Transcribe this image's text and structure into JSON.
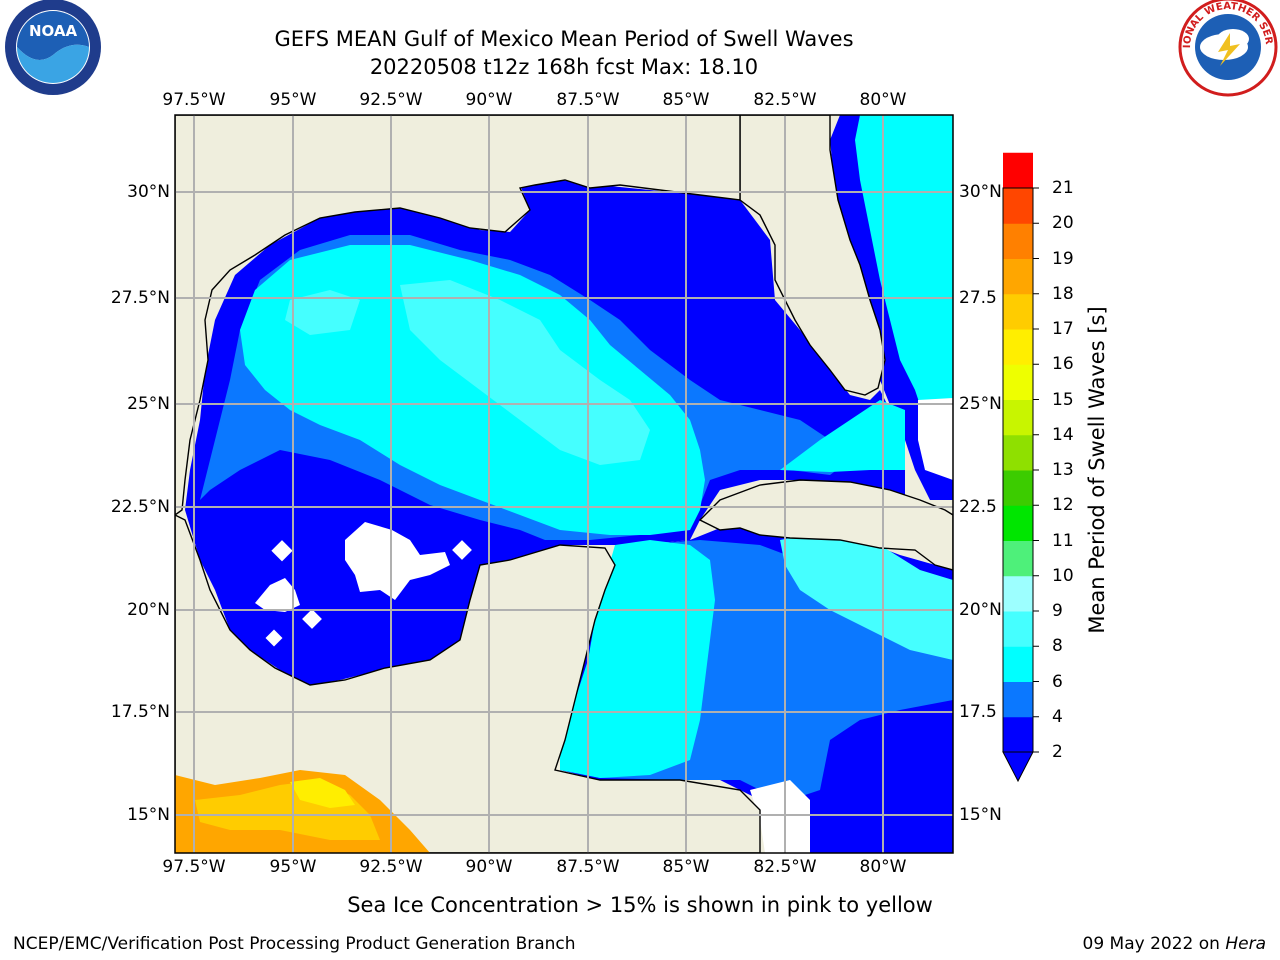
{
  "header": {
    "title_line1": "GEFS MEAN Gulf of Mexico Mean Period of Swell Waves",
    "title_line2": "20220508 t12z 168h fcst   Max: 18.10"
  },
  "logos": {
    "left": {
      "name": "noaa-logo",
      "text": "NOAA"
    },
    "right": {
      "name": "nws-logo",
      "text": "NATIONAL WEATHER SERVICE"
    }
  },
  "axes": {
    "x_ticks": [
      "97.5°W",
      "95°W",
      "92.5°W",
      "90°W",
      "87.5°W",
      "85°W",
      "82.5°W",
      "80°W"
    ],
    "y_ticks_left": [
      "30°N",
      "27.5°N",
      "25°N",
      "22.5°N",
      "20°N",
      "17.5°N",
      "15°N"
    ],
    "y_ticks_right": [
      "30°N",
      "27.5",
      "25°N",
      "22.5",
      "20°N",
      "17.5",
      "15°N"
    ]
  },
  "colorbar": {
    "label": "Mean Period of Swell Waves [s]",
    "ticks": [
      "2",
      "4",
      "6",
      "8",
      "9",
      "10",
      "11",
      "12",
      "13",
      "14",
      "15",
      "16",
      "17",
      "18",
      "19",
      "20",
      "21"
    ],
    "colors": [
      "#0000ff",
      "#0b78ff",
      "#00ffff",
      "#45ffff",
      "#9dffff",
      "#4ef07a",
      "#00e600",
      "#3ccc00",
      "#8fe000",
      "#c8f500",
      "#eeff00",
      "#ffee00",
      "#ffcc00",
      "#ffa600",
      "#ff8000",
      "#ff4600",
      "#ff0000"
    ]
  },
  "footer": {
    "note": "Sea Ice Concentration > 15% is shown in pink to yellow",
    "left": "NCEP/EMC/Verification Post Processing Product Generation Branch",
    "right_date": "09 May 2022 on ",
    "right_host": "Hera"
  }
}
